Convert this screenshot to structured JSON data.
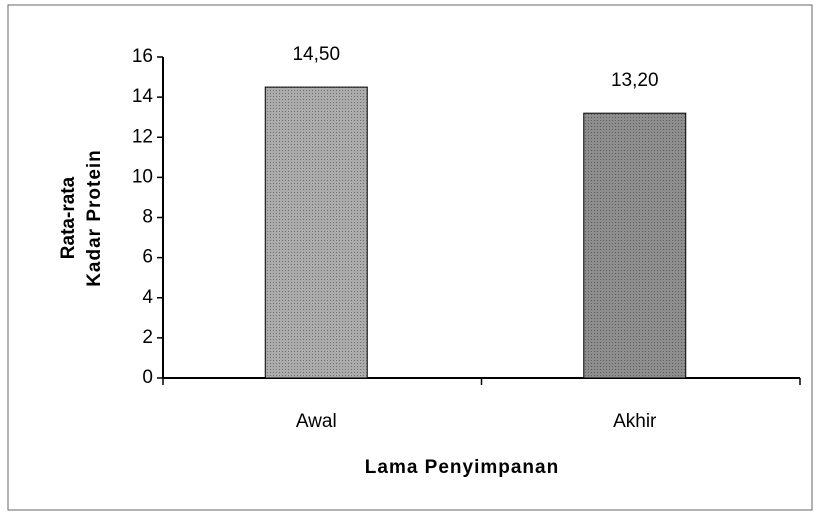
{
  "chart_data": {
    "type": "bar",
    "categories": [
      "Awal",
      "Akhir"
    ],
    "values": [
      14.5,
      13.2
    ],
    "value_labels": [
      "14,50",
      "13,20"
    ],
    "colors": [
      "#ababab",
      "#8e8e8e"
    ],
    "ylabel": [
      "Rata-rata",
      "Kadar Protein"
    ],
    "xlabel": "Lama Penyimpanan",
    "ylim": [
      0,
      16
    ],
    "yticks": [
      0,
      2,
      4,
      6,
      8,
      10,
      12,
      14,
      16
    ]
  }
}
